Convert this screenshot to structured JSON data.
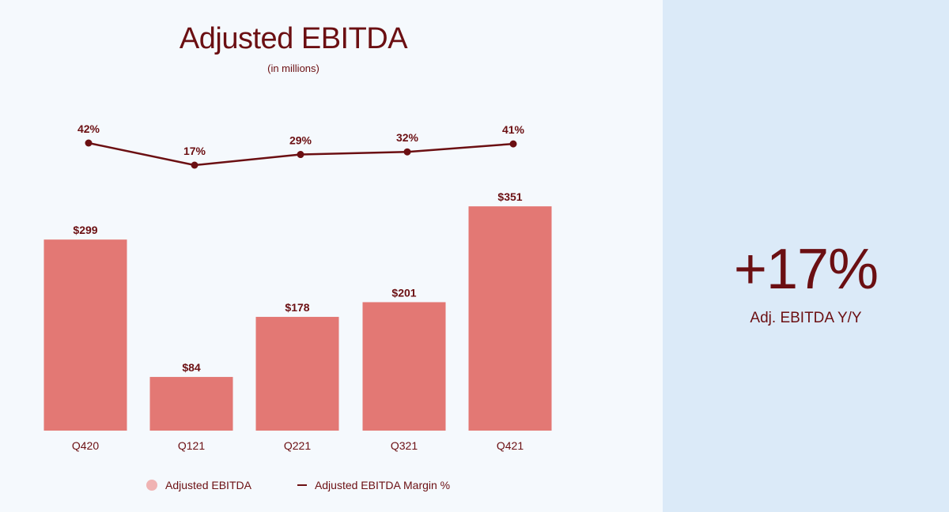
{
  "colors": {
    "bar": "#e37874",
    "line": "#6b0f12",
    "text": "#6b0f12",
    "legend_bar": "#f0b3b3",
    "left_bg": "#f5f9fd",
    "right_bg": "#dbeaf8"
  },
  "chart_data": {
    "type": "bar",
    "title": "Adjusted EBITDA",
    "subtitle": "(in millions)",
    "categories": [
      "Q420",
      "Q121",
      "Q221",
      "Q321",
      "Q421"
    ],
    "series": [
      {
        "name": "Adjusted EBITDA",
        "kind": "bar",
        "values": [
          299,
          84,
          178,
          201,
          351
        ],
        "labels": [
          "$299",
          "$84",
          "$178",
          "$201",
          "$351"
        ]
      },
      {
        "name": "Adjusted EBITDA Margin %",
        "kind": "line",
        "values": [
          42,
          17,
          29,
          32,
          41
        ],
        "labels": [
          "42%",
          "17%",
          "29%",
          "32%",
          "41%"
        ]
      }
    ],
    "legend": [
      "Adjusted EBITDA",
      "Adjusted EBITDA Margin %"
    ],
    "legend_position": "bottom",
    "grid": false
  },
  "kpi": {
    "value": "+17%",
    "label": "Adj. EBITDA Y/Y"
  }
}
